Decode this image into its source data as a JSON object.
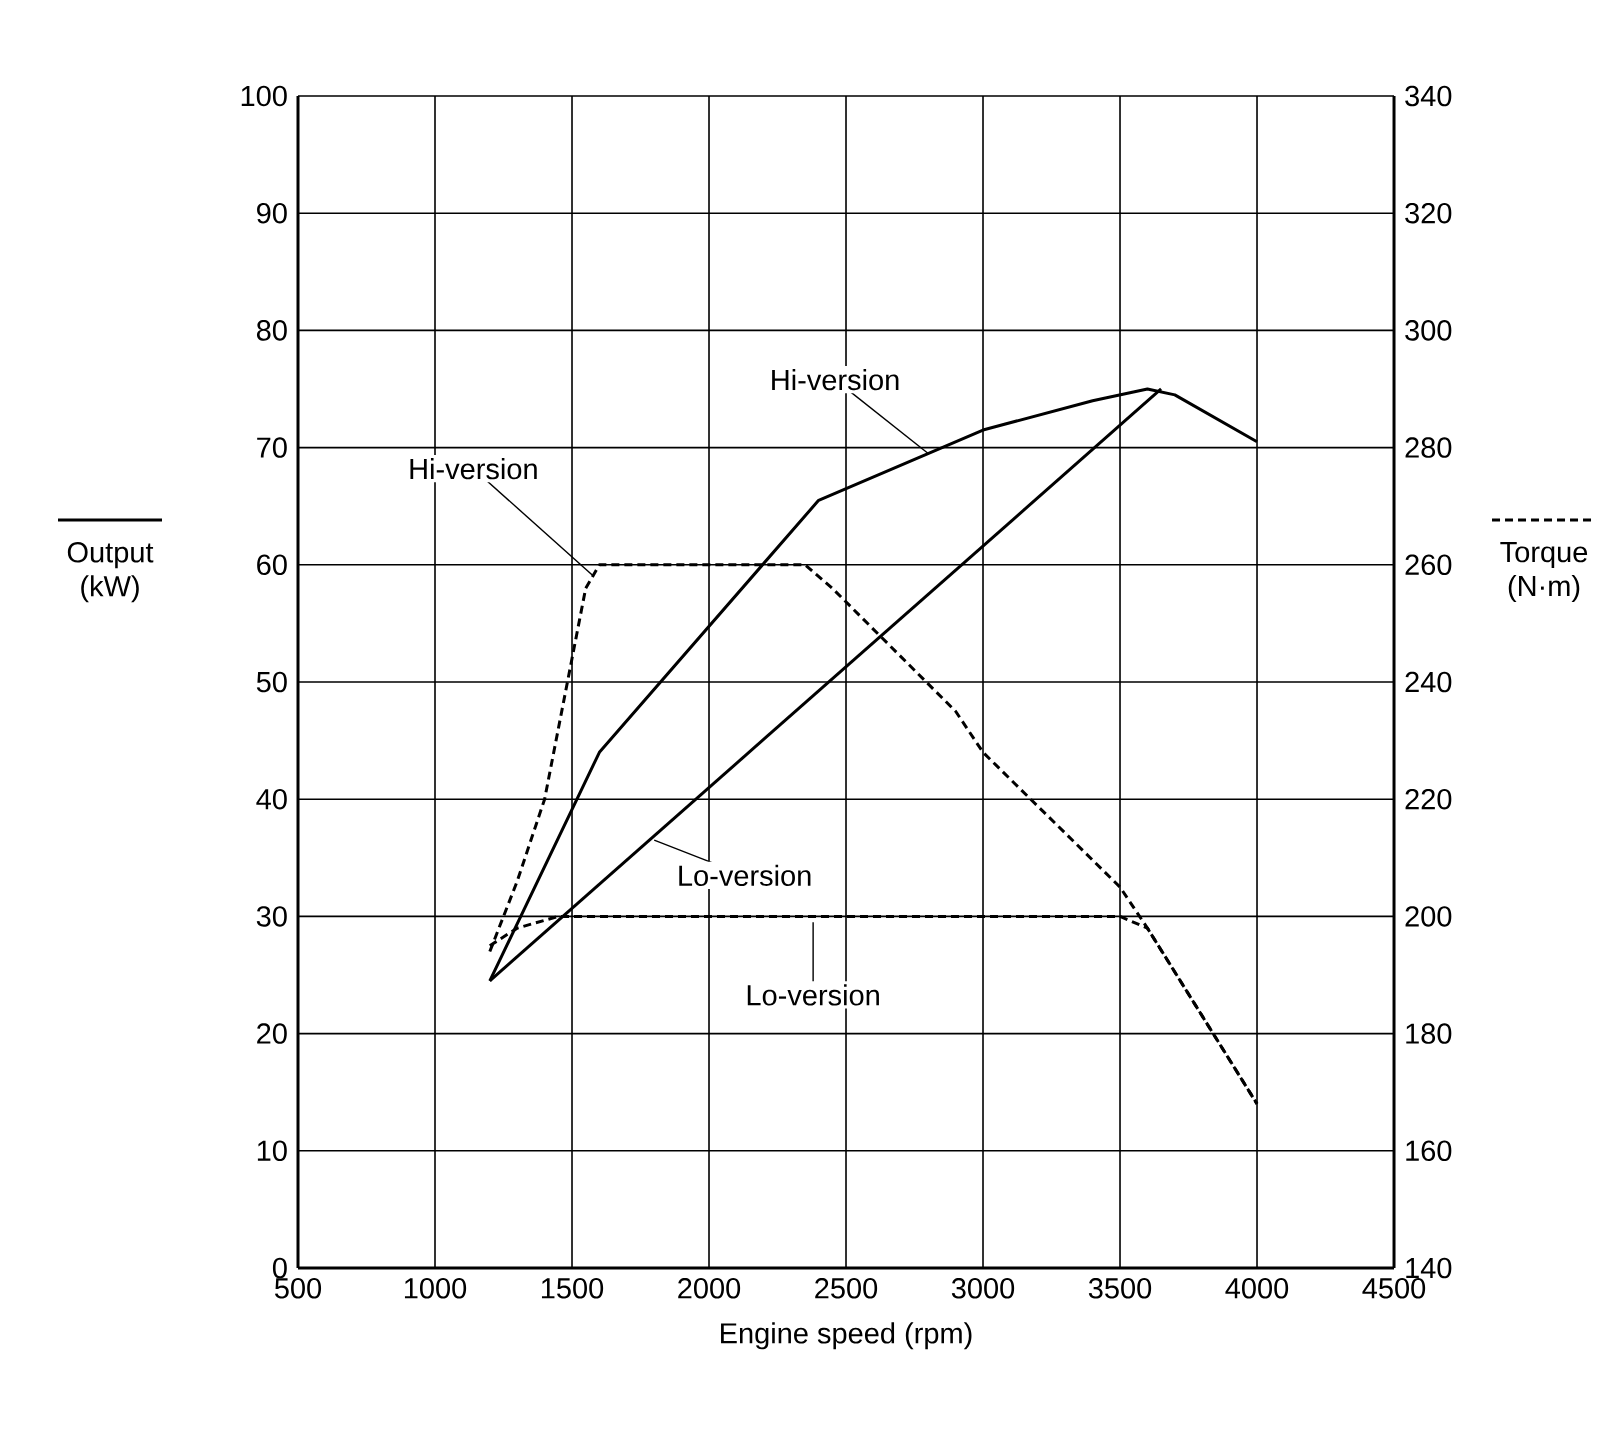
{
  "chart_data": {
    "type": "line",
    "xlabel": "Engine speed (rpm)",
    "ylabel": "Output (kW)",
    "y2label": "Torque (N·m)",
    "xlim": [
      500,
      4500
    ],
    "xticks": [
      500,
      1000,
      1500,
      2000,
      2500,
      3000,
      3500,
      4000,
      4500
    ],
    "ylim": [
      0,
      100
    ],
    "yticks": [
      0,
      10,
      20,
      30,
      40,
      50,
      60,
      70,
      80,
      90,
      100
    ],
    "y2lim": [
      140,
      340
    ],
    "y2ticks": [
      140,
      160,
      180,
      200,
      220,
      240,
      260,
      280,
      300,
      320,
      340
    ],
    "grid": true,
    "series": [
      {
        "color": "#000000",
        "line_style": "solid",
        "x": [
          1200,
          1600,
          2400,
          3000,
          3400,
          3600,
          3700,
          4000
        ],
        "values": [
          24.5,
          44,
          65.5,
          71.5,
          74,
          75,
          74.5,
          70.5
        ]
      },
      {
        "color": "#000000",
        "line_style": "solid",
        "x": [
          1200,
          3650
        ],
        "values": [
          24.5,
          75
        ]
      },
      {
        "color": "#000000",
        "line_style": "dashed",
        "axis": "y2",
        "x": [
          1200,
          1300,
          1400,
          1500,
          1550,
          1600,
          2350,
          2450,
          2900,
          3000,
          3500,
          3600,
          4000
        ],
        "values": [
          194,
          206,
          220,
          244,
          256,
          260,
          260,
          256,
          235,
          228,
          205,
          198,
          168
        ]
      },
      {
        "color": "#000000",
        "line_style": "dashed",
        "axis": "y2",
        "x": [
          1200,
          1300,
          1450,
          3500,
          3600,
          4000
        ],
        "values": [
          195,
          198,
          200,
          200,
          198,
          168
        ]
      }
    ],
    "annotations": [
      {
        "text": "Hi-version",
        "x": 2800,
        "y": 69.5
      },
      {
        "text": "Hi-version",
        "x": 1580,
        "y": 59
      },
      {
        "text": "Lo-version",
        "x": 1800,
        "y": 36.5
      },
      {
        "text": "Lo-version",
        "x": 2380,
        "y": 29.5
      }
    ]
  }
}
